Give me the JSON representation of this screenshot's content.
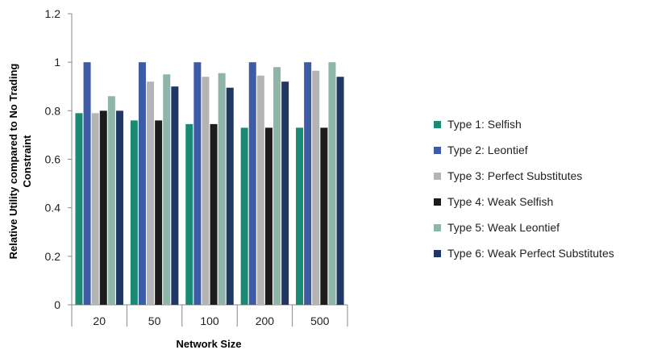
{
  "chart_data": {
    "type": "bar",
    "xlabel": "Network Size",
    "ylabel_lines": [
      "Relative Utility compared to No Trading",
      "Constraint"
    ],
    "ylim": [
      0,
      1.2
    ],
    "yticks": [
      "0",
      "0.2",
      "0.4",
      "0.6",
      "0.8",
      "1",
      "1.2"
    ],
    "categories": [
      "20",
      "50",
      "100",
      "200",
      "500"
    ],
    "grid": false,
    "legend_position": "right",
    "series": [
      {
        "name": "Type 1: Selfish",
        "color": "#1a8a73",
        "values": [
          0.79,
          0.76,
          0.745,
          0.73,
          0.73
        ]
      },
      {
        "name": "Type 2: Leontief",
        "color": "#3e5ba6",
        "values": [
          1.0,
          1.0,
          1.0,
          1.0,
          1.0
        ]
      },
      {
        "name": "Type 3: Perfect Substitutes",
        "color": "#b4b4b4",
        "values": [
          0.79,
          0.92,
          0.94,
          0.945,
          0.965
        ]
      },
      {
        "name": "Type 4: Weak Selfish",
        "color": "#1c1c1c",
        "values": [
          0.8,
          0.76,
          0.745,
          0.73,
          0.73
        ]
      },
      {
        "name": "Type 5: Weak Leontief",
        "color": "#8fb5aa",
        "values": [
          0.86,
          0.95,
          0.955,
          0.98,
          1.0
        ]
      },
      {
        "name": "Type 6: Weak Perfect Substitutes",
        "color": "#1f3763",
        "values": [
          0.8,
          0.9,
          0.895,
          0.92,
          0.94
        ]
      }
    ]
  }
}
